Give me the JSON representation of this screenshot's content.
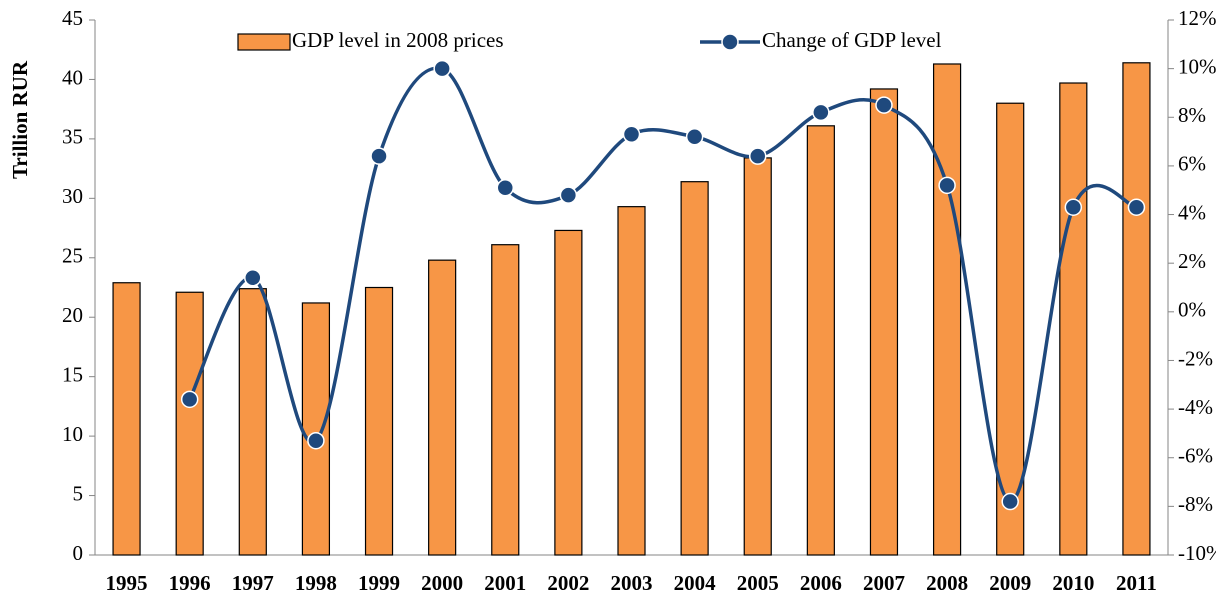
{
  "chart_data": {
    "type": "bar",
    "y_label": "Trillion RUR",
    "categories": [
      "1995",
      "1996",
      "1997",
      "1998",
      "1999",
      "2000",
      "2001",
      "2002",
      "2003",
      "2004",
      "2005",
      "2006",
      "2007",
      "2008",
      "2009",
      "2010",
      "2011"
    ],
    "series": [
      {
        "name": "GDP level in 2008 prices",
        "type": "bar",
        "color": "#F79646",
        "values": [
          22.9,
          22.1,
          22.4,
          21.2,
          22.5,
          24.8,
          26.1,
          27.3,
          29.3,
          31.4,
          33.4,
          36.1,
          39.2,
          41.3,
          38.0,
          39.7,
          41.4
        ]
      },
      {
        "name": "Change of GDP level",
        "type": "line",
        "axis": "y2",
        "color": "#1F497D",
        "values": [
          null,
          -3.6,
          1.4,
          -5.3,
          6.4,
          10.0,
          5.1,
          4.8,
          7.3,
          7.2,
          6.4,
          8.2,
          8.5,
          5.2,
          -7.8,
          4.3,
          4.3
        ]
      }
    ],
    "ylim": [
      0,
      45
    ],
    "yticks": [
      0,
      5,
      10,
      15,
      20,
      25,
      30,
      35,
      40,
      45
    ],
    "y2lim": [
      -10,
      12
    ],
    "y2ticks": [
      {
        "value": -10,
        "label": "-10%"
      },
      {
        "value": -8,
        "label": "-8%"
      },
      {
        "value": -6,
        "label": "-6%"
      },
      {
        "value": -4,
        "label": "-4%"
      },
      {
        "value": -2,
        "label": "-2%"
      },
      {
        "value": 0,
        "label": "0%"
      },
      {
        "value": 2,
        "label": "2%"
      },
      {
        "value": 4,
        "label": "4%"
      },
      {
        "value": 6,
        "label": "6%"
      },
      {
        "value": 8,
        "label": "8%"
      },
      {
        "value": 10,
        "label": "10%"
      },
      {
        "value": 12,
        "label": "12%"
      }
    ],
    "grid": false,
    "legend": "top"
  }
}
